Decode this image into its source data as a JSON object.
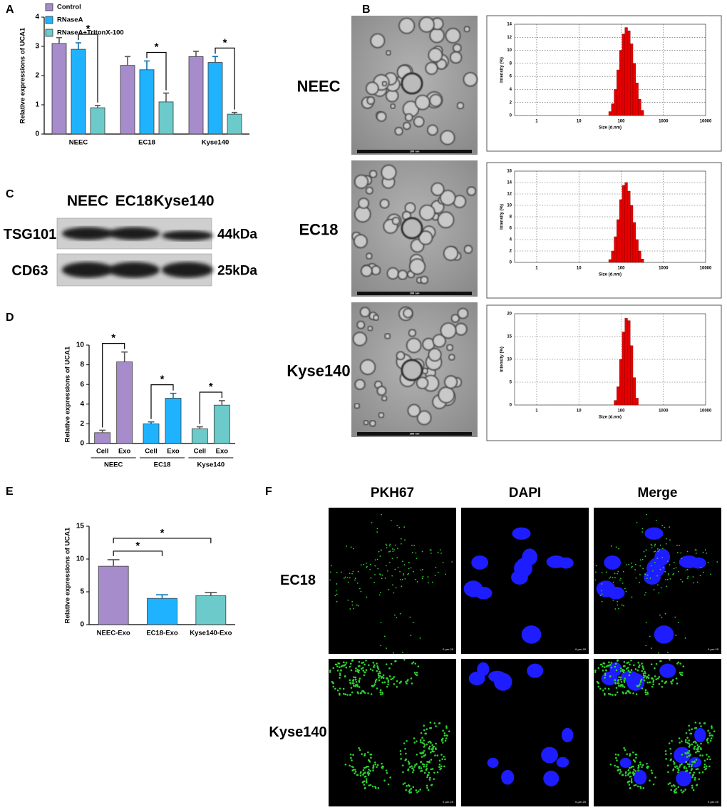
{
  "panel_labels": [
    "A",
    "B",
    "C",
    "D",
    "E",
    "F"
  ],
  "chart_data": [
    {
      "type": "bar",
      "ylabel": "Relative expressions of UCA1",
      "categories": [
        "NEEC",
        "EC18",
        "Kyse140"
      ],
      "series": [
        {
          "name": "Control",
          "color": "#a68ccb",
          "values": [
            3.1,
            2.35,
            2.65
          ],
          "errors": [
            0.2,
            0.3,
            0.18
          ]
        },
        {
          "name": "RNaseA",
          "color": "#1fb3ff",
          "values": [
            2.9,
            2.2,
            2.45
          ],
          "errors": [
            0.22,
            0.3,
            0.2
          ]
        },
        {
          "name": "RNaseA+TritonX-100",
          "color": "#6ccaca",
          "values": [
            0.9,
            1.1,
            0.68
          ],
          "errors": [
            0.08,
            0.3,
            0.06
          ]
        }
      ],
      "ylim": [
        0,
        4
      ],
      "yticks": [
        0,
        1,
        2,
        3,
        4
      ],
      "annotations": [
        "*",
        "*",
        "*"
      ]
    },
    {
      "type": "bar",
      "ylabel": "Relative expressions of UCA1",
      "categories": [
        "Cell",
        "Exo",
        "Cell",
        "Exo",
        "Cell",
        "Exo"
      ],
      "groups": [
        "NEEC",
        "EC18",
        "Kyse140"
      ],
      "values": [
        1.1,
        8.3,
        2.0,
        4.6,
        1.5,
        3.9
      ],
      "errors": [
        0.25,
        1.0,
        0.2,
        0.5,
        0.2,
        0.45
      ],
      "colors": [
        "#a68ccb",
        "#a68ccb",
        "#1fb3ff",
        "#1fb3ff",
        "#6ccaca",
        "#6ccaca"
      ],
      "ylim": [
        0,
        10
      ],
      "yticks": [
        0,
        2,
        4,
        6,
        8,
        10
      ],
      "annotations": [
        "*",
        "*",
        "*"
      ]
    },
    {
      "type": "bar",
      "ylabel": "Relative expressions of UCA1",
      "categories": [
        "NEEC-Exo",
        "EC18-Exo",
        "Kyse140-Exo"
      ],
      "values": [
        8.9,
        4.0,
        4.4
      ],
      "errors": [
        1.0,
        0.55,
        0.5
      ],
      "colors": [
        "#a68ccb",
        "#1fb3ff",
        "#6ccaca"
      ],
      "ylim": [
        0,
        15
      ],
      "yticks": [
        0,
        5,
        10,
        15
      ],
      "annotations": [
        "*",
        "*"
      ]
    },
    {
      "type": "histogram",
      "xlabel": "Size (d.nm)",
      "ylabel": "Intensity (%)",
      "bins": [
        50.75,
        58.77,
        68.06,
        78.82,
        91.28,
        105.7,
        122.4,
        141.8,
        164.2,
        190.1,
        220.2,
        255.0,
        295.3,
        342.0
      ],
      "values": [
        0.6,
        1.8,
        4,
        7,
        10,
        12.5,
        13.5,
        13,
        11,
        8,
        5,
        2.5,
        0.8
      ],
      "color": "#e60000",
      "log_x": true,
      "xlim": [
        0.3,
        10000
      ],
      "xticks": [
        1,
        10,
        100,
        1000,
        10000
      ],
      "ylim": [
        0,
        14
      ],
      "yticks": [
        0,
        2,
        4,
        6,
        8,
        10,
        12,
        14
      ],
      "grid": true
    },
    {
      "type": "histogram",
      "xlabel": "Size (d.nm)",
      "ylabel": "Intensity (%)",
      "bins": [
        50.75,
        58.77,
        68.06,
        78.82,
        91.28,
        105.7,
        122.4,
        141.8,
        164.2,
        190.1,
        220.2,
        255.0,
        295.3,
        342.0
      ],
      "values": [
        0.5,
        2,
        4.5,
        7.5,
        11,
        13.5,
        14,
        12.5,
        10,
        7,
        4,
        2,
        0.6
      ],
      "color": "#e60000",
      "log_x": true,
      "xlim": [
        0.3,
        10000
      ],
      "xticks": [
        1,
        10,
        100,
        1000,
        10000
      ],
      "ylim": [
        0,
        16
      ],
      "yticks": [
        0,
        2,
        4,
        6,
        8,
        10,
        12,
        14,
        16
      ],
      "grid": true
    },
    {
      "type": "histogram",
      "xlabel": "Size (d.nm)",
      "ylabel": "Intensity (%)",
      "bins": [
        68.06,
        78.82,
        91.28,
        105.7,
        122.4,
        141.8,
        164.2,
        190.1,
        220.2,
        255.0
      ],
      "values": [
        1,
        4,
        10,
        16,
        19,
        18.5,
        13,
        6,
        1.5
      ],
      "color": "#e60000",
      "log_x": true,
      "xlim": [
        0.3,
        10000
      ],
      "xticks": [
        1,
        10,
        100,
        1000,
        10000
      ],
      "ylim": [
        0,
        20
      ],
      "yticks": [
        0,
        5,
        10,
        15,
        20
      ],
      "grid": true
    }
  ],
  "panel_b": {
    "rows": [
      "NEEC",
      "EC18",
      "Kyse140"
    ],
    "scale_label": "100 nm"
  },
  "panel_c": {
    "lanes": [
      "NEEC",
      "EC18",
      "Kyse140"
    ],
    "rows": [
      {
        "protein": "TSG101",
        "size": "44kDa"
      },
      {
        "protein": "CD63",
        "size": "25kDa"
      }
    ]
  },
  "panel_f": {
    "columns": [
      "PKH67",
      "DAPI",
      "Merge"
    ],
    "rows": [
      "EC18",
      "Kyse140"
    ],
    "scale_label": "0 μm 25"
  }
}
